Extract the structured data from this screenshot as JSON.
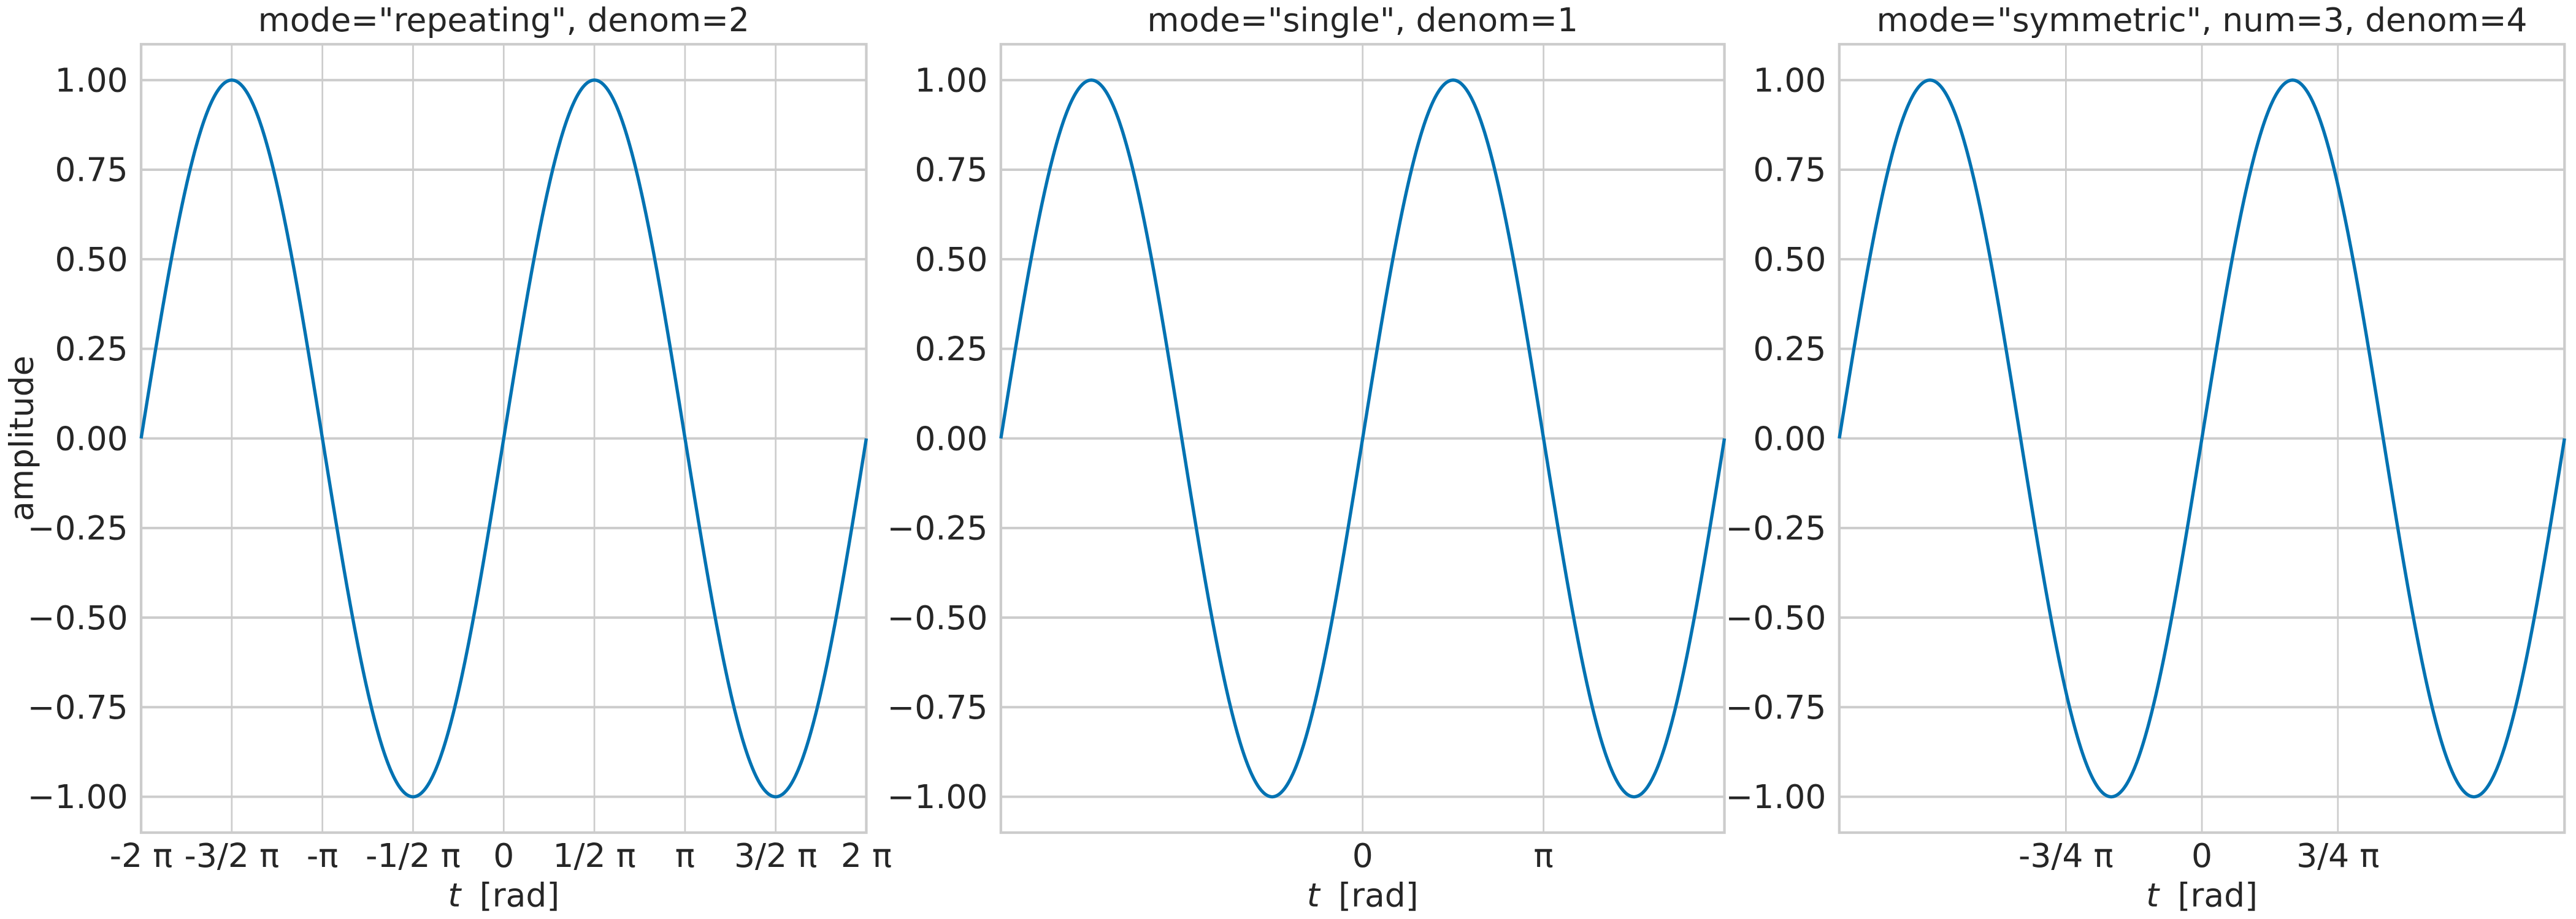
{
  "chart_data": [
    {
      "type": "line",
      "title": "mode=\"repeating\", denom=2",
      "xlabel_italic": "t",
      "xlabel": " [rad]",
      "ylabel": "amplitude",
      "function": "sin(t)",
      "xlim": [
        -6.2832,
        6.2832
      ],
      "ylim": [
        -1.1,
        1.1
      ],
      "grid": true,
      "line_color": "#0072b2",
      "xticks": [
        {
          "value": -6.2832,
          "label": "-2 π"
        },
        {
          "value": -4.7124,
          "label": "-3/2 π"
        },
        {
          "value": -3.1416,
          "label": "-π"
        },
        {
          "value": -1.5708,
          "label": "-1/2 π"
        },
        {
          "value": 0,
          "label": "0"
        },
        {
          "value": 1.5708,
          "label": "1/2 π"
        },
        {
          "value": 3.1416,
          "label": "π"
        },
        {
          "value": 4.7124,
          "label": "3/2 π"
        },
        {
          "value": 6.2832,
          "label": "2 π"
        }
      ],
      "yticks": [
        {
          "value": 1,
          "label": "1.00"
        },
        {
          "value": 0.75,
          "label": "0.75"
        },
        {
          "value": 0.5,
          "label": "0.50"
        },
        {
          "value": 0.25,
          "label": "0.25"
        },
        {
          "value": 0,
          "label": "0.00"
        },
        {
          "value": -0.25,
          "label": "−0.25"
        },
        {
          "value": -0.5,
          "label": "−0.50"
        },
        {
          "value": -0.75,
          "label": "−0.75"
        },
        {
          "value": -1,
          "label": "−1.00"
        }
      ]
    },
    {
      "type": "line",
      "title": "mode=\"single\", denom=1",
      "xlabel_italic": "t",
      "xlabel": " [rad]",
      "ylabel": "",
      "function": "sin(t)",
      "xlim": [
        -6.2832,
        6.2832
      ],
      "ylim": [
        -1.1,
        1.1
      ],
      "grid": true,
      "line_color": "#0072b2",
      "xticks": [
        {
          "value": 0,
          "label": "0"
        },
        {
          "value": 3.1416,
          "label": "π"
        }
      ],
      "yticks": [
        {
          "value": 1,
          "label": "1.00"
        },
        {
          "value": 0.75,
          "label": "0.75"
        },
        {
          "value": 0.5,
          "label": "0.50"
        },
        {
          "value": 0.25,
          "label": "0.25"
        },
        {
          "value": 0,
          "label": "0.00"
        },
        {
          "value": -0.25,
          "label": "−0.25"
        },
        {
          "value": -0.5,
          "label": "−0.50"
        },
        {
          "value": -0.75,
          "label": "−0.75"
        },
        {
          "value": -1,
          "label": "−1.00"
        }
      ]
    },
    {
      "type": "line",
      "title": "mode=\"symmetric\", num=3, denom=4",
      "xlabel_italic": "t",
      "xlabel": " [rad]",
      "ylabel": "",
      "function": "sin(t)",
      "xlim": [
        -6.2832,
        6.2832
      ],
      "ylim": [
        -1.1,
        1.1
      ],
      "grid": true,
      "line_color": "#0072b2",
      "xticks": [
        {
          "value": -2.3562,
          "label": "-3/4 π"
        },
        {
          "value": 0,
          "label": "0"
        },
        {
          "value": 2.3562,
          "label": "3/4 π"
        }
      ],
      "yticks": [
        {
          "value": 1,
          "label": "1.00"
        },
        {
          "value": 0.75,
          "label": "0.75"
        },
        {
          "value": 0.5,
          "label": "0.50"
        },
        {
          "value": 0.25,
          "label": "0.25"
        },
        {
          "value": 0,
          "label": "0.00"
        },
        {
          "value": -0.25,
          "label": "−0.25"
        },
        {
          "value": -0.5,
          "label": "−0.50"
        },
        {
          "value": -0.75,
          "label": "−0.75"
        },
        {
          "value": -1,
          "label": "−1.00"
        }
      ]
    }
  ]
}
